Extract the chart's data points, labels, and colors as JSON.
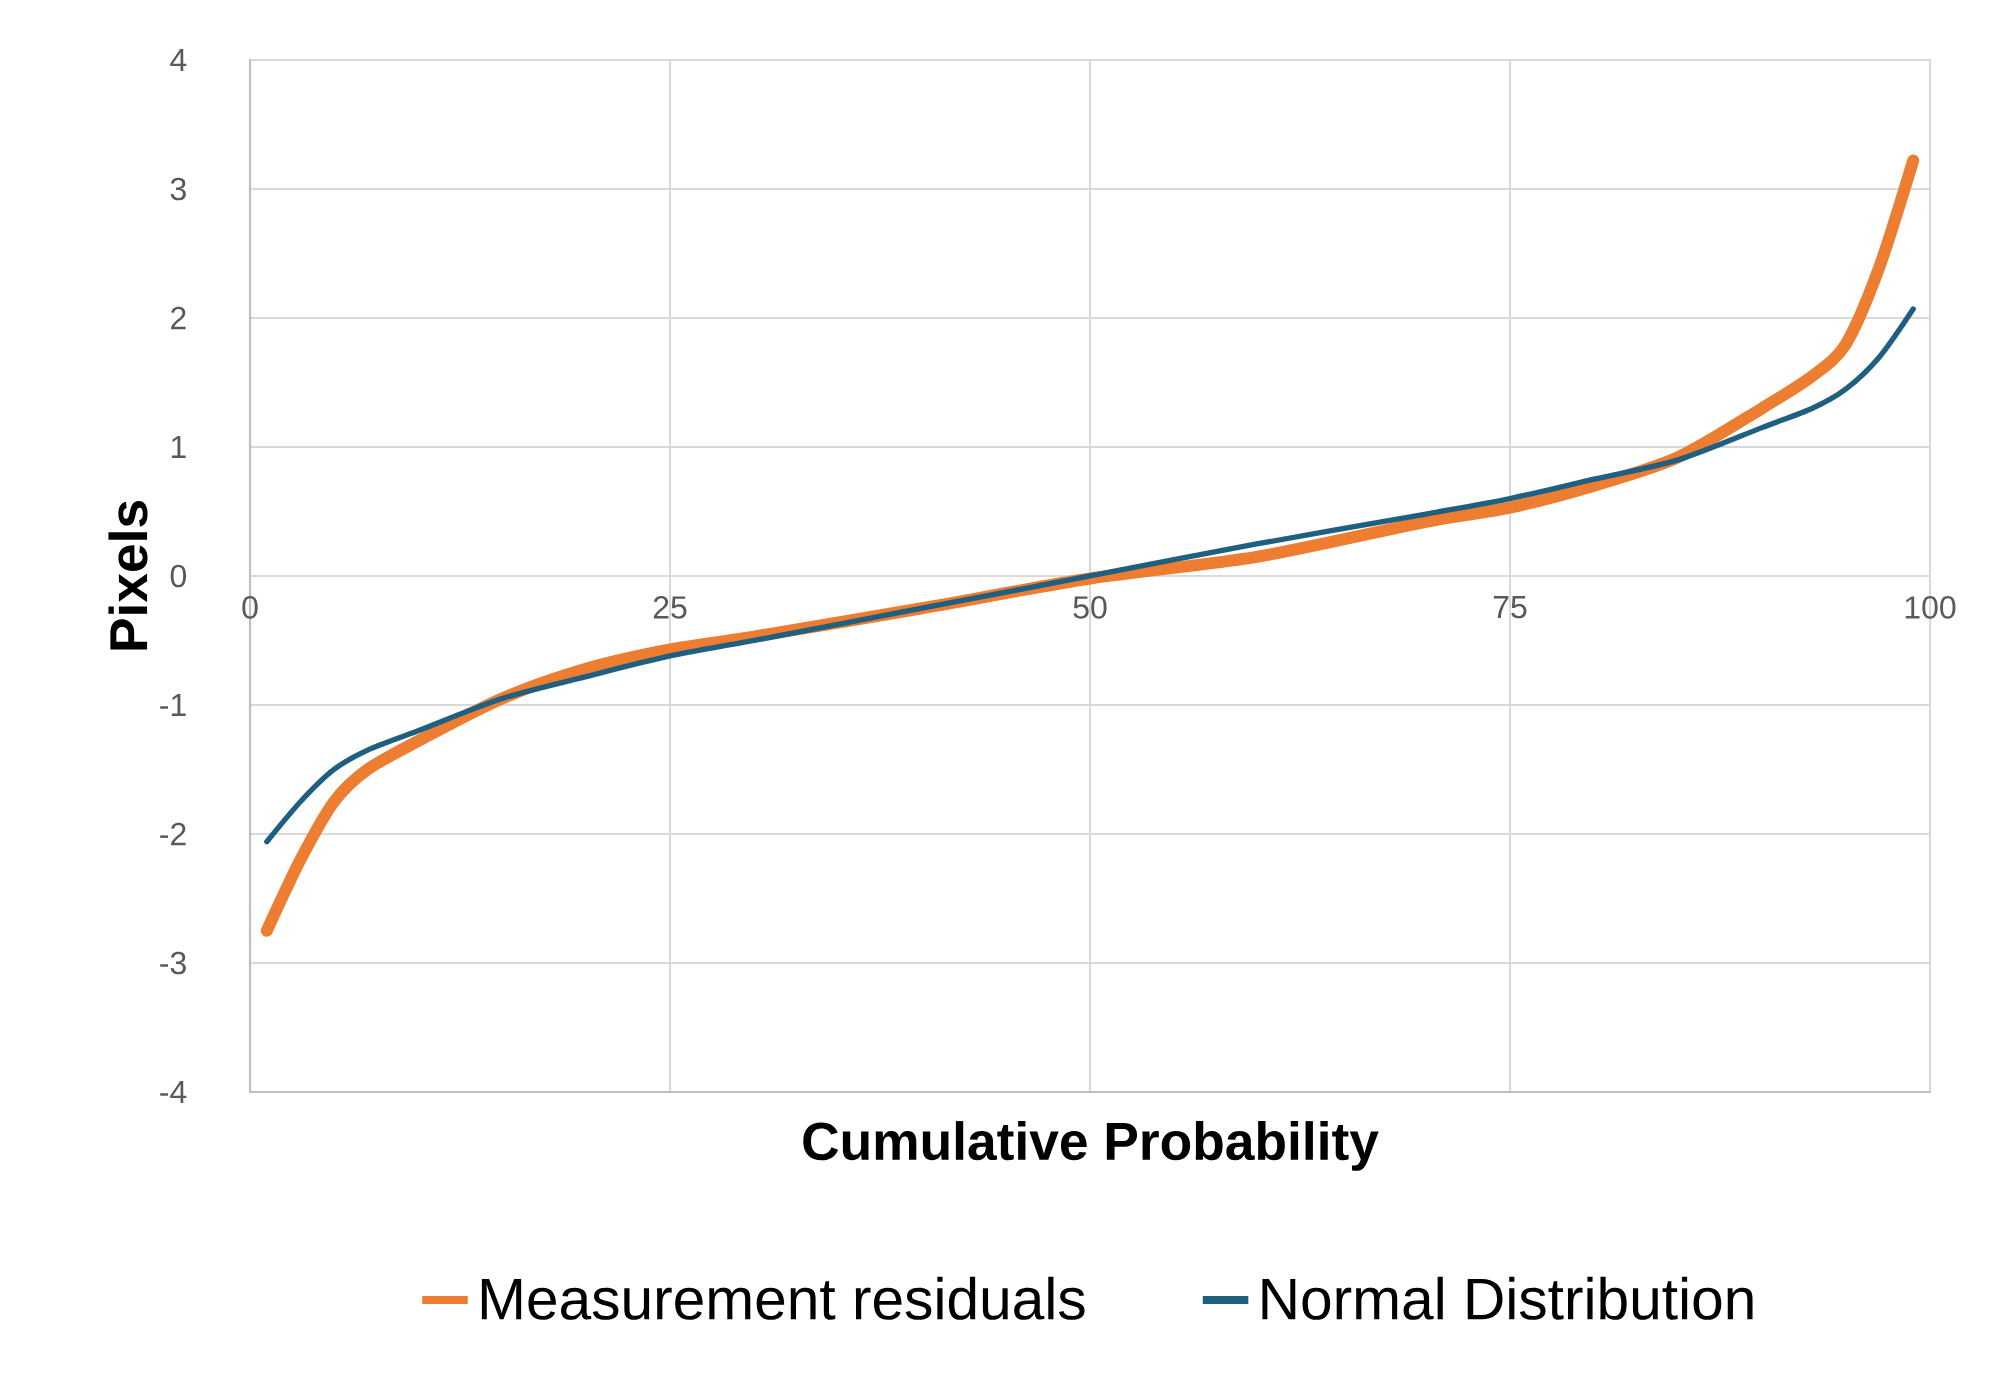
{
  "chart_data": {
    "type": "line",
    "xlabel": "Cumulative Probability",
    "ylabel": "Pixels",
    "xlim": [
      0,
      100
    ],
    "ylim": [
      -4,
      4
    ],
    "xticks": [
      0,
      25,
      50,
      75,
      100
    ],
    "yticks": [
      -4,
      -3,
      -2,
      -1,
      0,
      1,
      2,
      3,
      4
    ],
    "grid": true,
    "legend": "bottom",
    "marker": "none",
    "line_style": "solid",
    "series": [
      {
        "name": "Measurement residuals",
        "color": "#ed7d31",
        "x": [
          1,
          3,
          5,
          7,
          10,
          15,
          20,
          25,
          30,
          40,
          50,
          60,
          70,
          75,
          80,
          85,
          90,
          93,
          95,
          97,
          99
        ],
        "values": [
          -2.75,
          -2.2,
          -1.75,
          -1.5,
          -1.28,
          -0.95,
          -0.72,
          -0.57,
          -0.47,
          -0.25,
          -0.02,
          0.15,
          0.42,
          0.53,
          0.7,
          0.92,
          1.3,
          1.55,
          1.8,
          2.4,
          3.22
        ]
      },
      {
        "name": "Normal Distribution",
        "color": "#1f5f7f",
        "x": [
          1,
          3,
          5,
          7,
          10,
          15,
          20,
          25,
          30,
          40,
          50,
          60,
          70,
          75,
          80,
          85,
          90,
          93,
          95,
          97,
          99
        ],
        "values": [
          -2.06,
          -1.75,
          -1.5,
          -1.35,
          -1.2,
          -0.95,
          -0.78,
          -0.62,
          -0.5,
          -0.25,
          0,
          0.25,
          0.48,
          0.6,
          0.75,
          0.9,
          1.15,
          1.3,
          1.45,
          1.7,
          2.07
        ]
      }
    ]
  }
}
